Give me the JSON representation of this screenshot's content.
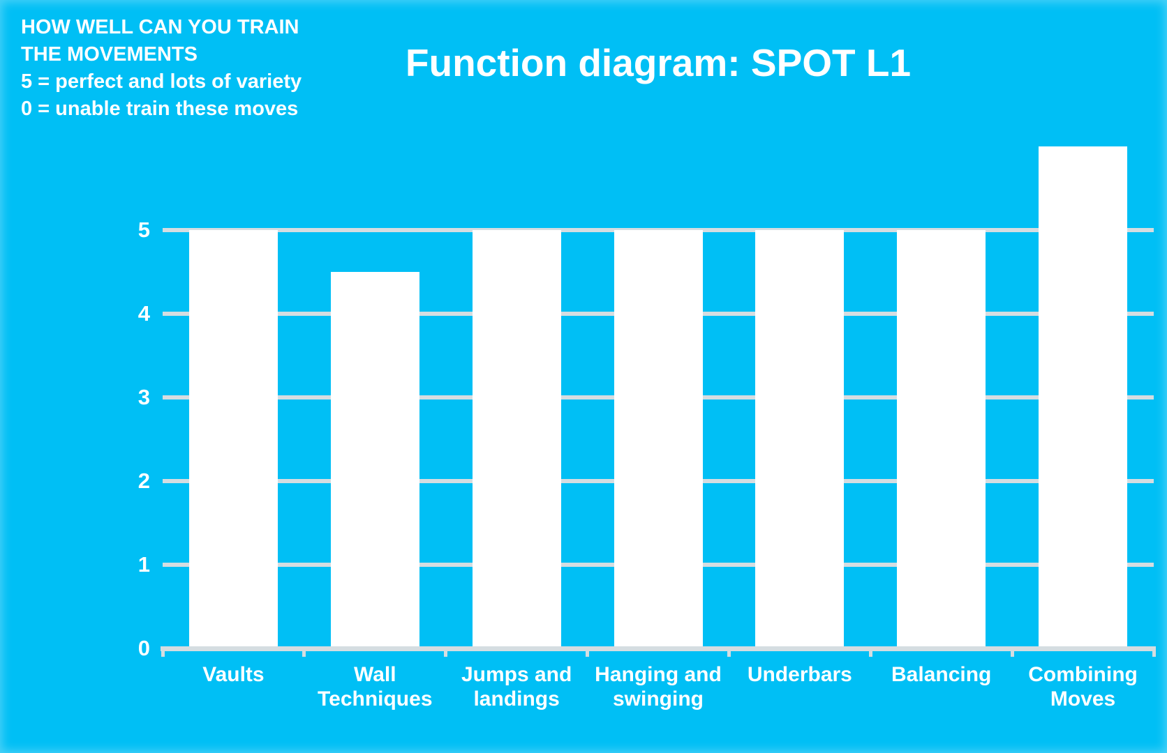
{
  "slide": {
    "title": "Function diagram: SPOT L1",
    "annotation": {
      "lines": [
        "HOW WELL CAN YOU TRAIN",
        "THE MOVEMENTS",
        "5 = perfect and lots of variety",
        "0 = unable train these moves"
      ]
    }
  },
  "colors": {
    "background": "#00BFF5",
    "bar": "#FFFFFF",
    "gridline": "#D5DDE1",
    "text": "#FFFFFF"
  },
  "chart_data": {
    "type": "bar",
    "title": "Function diagram: SPOT L1",
    "categories": [
      "Vaults",
      "Wall Techniques",
      "Jumps and landings",
      "Hanging and swinging",
      "Underbars",
      "Balancing",
      "Combining Moves"
    ],
    "values": [
      5,
      4.5,
      5,
      5,
      5,
      5,
      6
    ],
    "xlabel": "",
    "ylabel": "",
    "yticks": [
      0,
      1,
      2,
      3,
      4,
      5
    ],
    "ylim": [
      0,
      6
    ],
    "grid": true,
    "legend": false,
    "bar_color": "#FFFFFF",
    "annotation": "HOW WELL CAN YOU TRAIN THE MOVEMENTS; 5 = perfect and lots of variety; 0 = unable train these moves"
  }
}
